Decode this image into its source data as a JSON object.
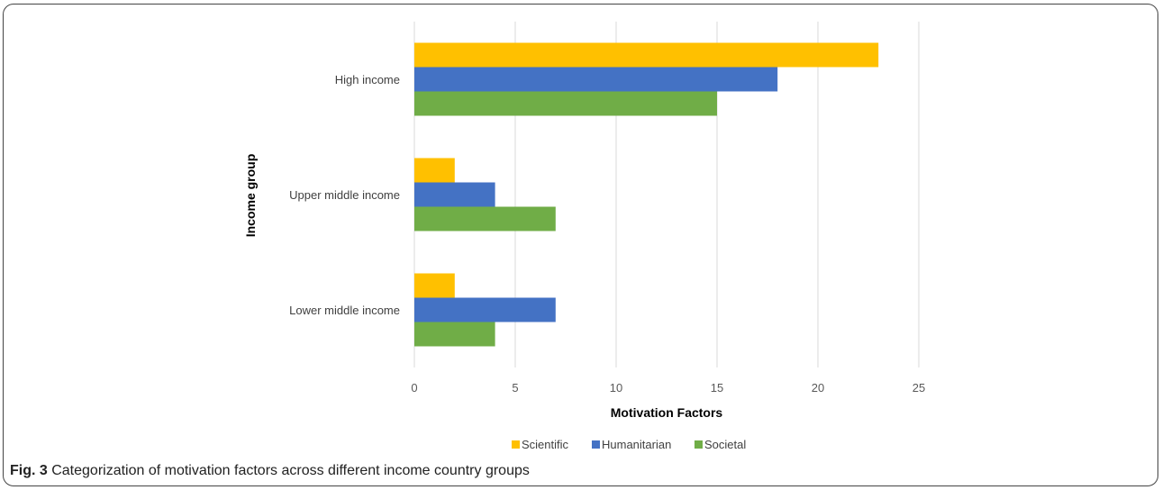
{
  "chart_data": {
    "type": "bar",
    "orientation": "horizontal",
    "categories": [
      "High income",
      "Upper middle income",
      "Lower middle income"
    ],
    "series": [
      {
        "name": "Scientific",
        "color": "#FFC000",
        "values": [
          23,
          2,
          2
        ]
      },
      {
        "name": "Humanitarian",
        "color": "#4472C4",
        "values": [
          18,
          4,
          7
        ]
      },
      {
        "name": "Societal",
        "color": "#70AD47",
        "values": [
          15,
          7,
          4
        ]
      }
    ],
    "xlabel": "Motivation Factors",
    "ylabel": "Income group",
    "xlim": [
      0,
      25
    ],
    "xticks": [
      0,
      5,
      10,
      15,
      20,
      25
    ],
    "grid": true,
    "legend_position": "bottom"
  },
  "caption": {
    "label": "Fig. 3",
    "text": " Categorization of motivation factors across different income country groups"
  }
}
